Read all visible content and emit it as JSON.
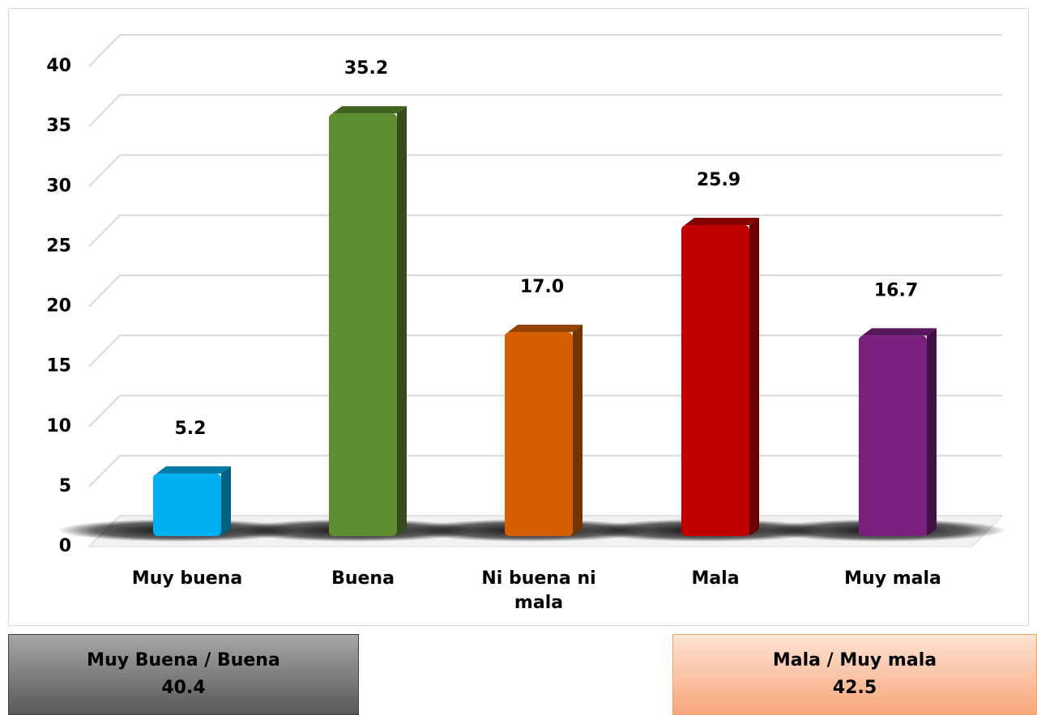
{
  "chart_data": {
    "type": "bar3d",
    "categories": [
      "Muy buena",
      "Buena",
      "Ni buena ni mala",
      "Mala",
      "Muy mala"
    ],
    "values": [
      5.2,
      35.2,
      17.0,
      25.9,
      16.7
    ],
    "value_labels": [
      "5.2",
      "35.2",
      "17.0",
      "25.9",
      "16.7"
    ],
    "colors": [
      "#00b0f0",
      "#5e8c31",
      "#d35f00",
      "#c00000",
      "#7b1f7f"
    ],
    "ylim": [
      0,
      40
    ],
    "yticks": [
      0,
      5,
      10,
      15,
      20,
      25,
      30,
      35,
      40
    ],
    "grid": true
  },
  "summary_boxes": [
    {
      "label": "Muy Buena / Buena",
      "value": 40.4
    },
    {
      "label": "Mala / Muy mala",
      "value": 42.5
    }
  ]
}
